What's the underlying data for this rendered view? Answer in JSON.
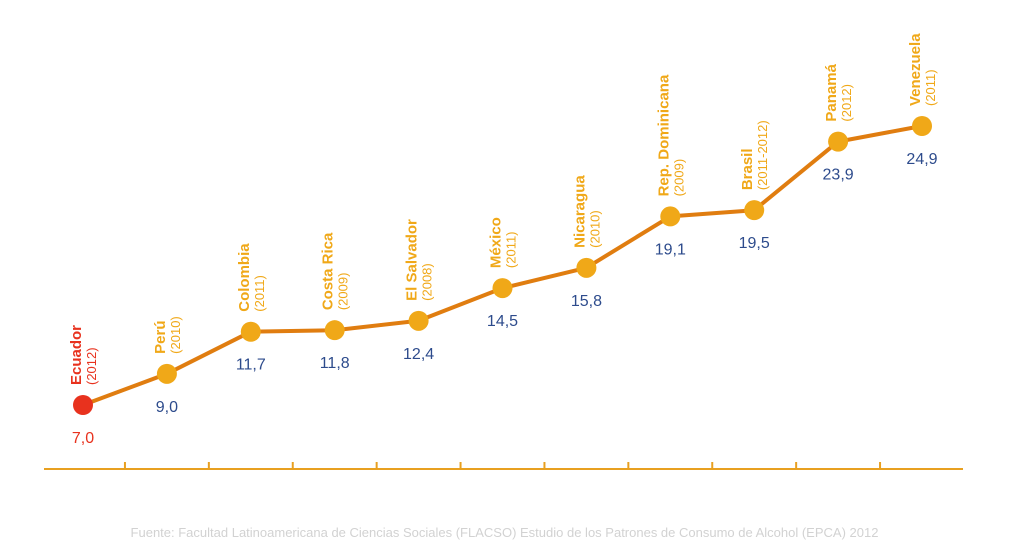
{
  "colors": {
    "line": "#e07d10",
    "point": "#f0a818",
    "highlight": "#e8321e",
    "value": "#2d4b8c",
    "axis": "#e8a020",
    "source": "#d2d2d2"
  },
  "chart_data": {
    "type": "line",
    "title": "",
    "xlabel": "",
    "ylabel": "",
    "grid": false,
    "legend": "none",
    "ylim": [
      0,
      27
    ],
    "points": [
      {
        "country": "Ecuador",
        "year": "(2012)",
        "value": 7.0,
        "label": "7,0",
        "highlight": true
      },
      {
        "country": "Perú",
        "year": "(2010)",
        "value": 9.0,
        "label": "9,0",
        "highlight": false
      },
      {
        "country": "Colombia",
        "year": "(2011)",
        "value": 11.7,
        "label": "11,7",
        "highlight": false
      },
      {
        "country": "Costa Rica",
        "year": "(2009)",
        "value": 11.8,
        "label": "11,8",
        "highlight": false
      },
      {
        "country": "El Salvador",
        "year": "(2008)",
        "value": 12.4,
        "label": "12,4",
        "highlight": false
      },
      {
        "country": "México",
        "year": "(2011)",
        "value": 14.5,
        "label": "14,5",
        "highlight": false
      },
      {
        "country": "Nicaragua",
        "year": "(2010)",
        "value": 15.8,
        "label": "15,8",
        "highlight": false
      },
      {
        "country": "Rep. Dominicana",
        "year": "(2009)",
        "value": 19.1,
        "label": "19,1",
        "highlight": false
      },
      {
        "country": "Brasil",
        "year": "(2011-2012)",
        "value": 19.5,
        "label": "19,5",
        "highlight": false
      },
      {
        "country": "Panamá",
        "year": "(2012)",
        "value": 23.9,
        "label": "23,9",
        "highlight": false
      },
      {
        "country": "Venezuela",
        "year": "(2011)",
        "value": 24.9,
        "label": "24,9",
        "highlight": false
      }
    ]
  },
  "source": "Fuente: Facultad Latinoamericana de Ciencias Sociales (FLACSO) Estudio de los Patrones de Consumo de Alcohol (EPCA) 2012"
}
